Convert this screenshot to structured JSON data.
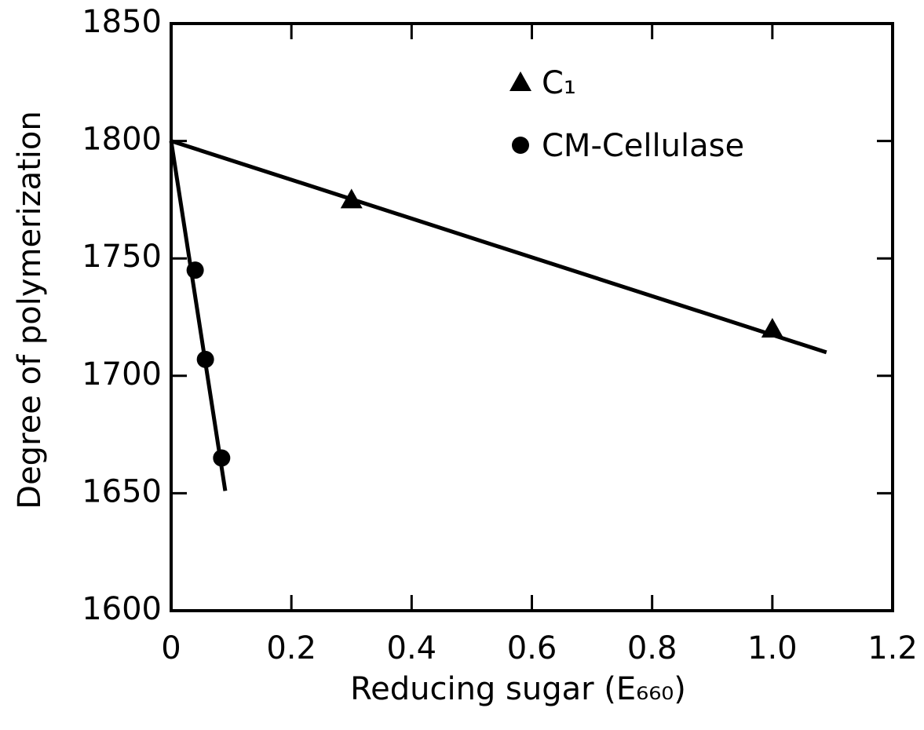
{
  "chart_data": {
    "type": "scatter",
    "x_label": "Reducing sugar (E₆₆₀)",
    "y_label": "Degree of polymerization",
    "xlim": [
      0,
      1.2
    ],
    "xticks": [
      0,
      0.2,
      0.4,
      0.6,
      0.8,
      {
        "value": 1.0,
        "label": "1.0"
      },
      1.2
    ],
    "ylim": [
      1600,
      1850
    ],
    "yticks": [
      1600,
      1650,
      1700,
      1750,
      1800,
      1850
    ],
    "legend": "top-center",
    "series": [
      {
        "name": "C₁",
        "color": "#000000",
        "marker": "triangle",
        "x": [
          0.3,
          1.0
        ],
        "values": [
          1775,
          1720
        ],
        "line_x": [
          0,
          1.09
        ],
        "line_y": [
          1800,
          1710
        ]
      },
      {
        "name": "CM-Cellulase",
        "color": "#000000",
        "marker": "circle",
        "x": [
          0.04,
          0.057,
          0.084
        ],
        "values": [
          1745,
          1707,
          1665
        ],
        "line_x": [
          0,
          0.09
        ],
        "line_y": [
          1800,
          1651
        ]
      }
    ]
  }
}
